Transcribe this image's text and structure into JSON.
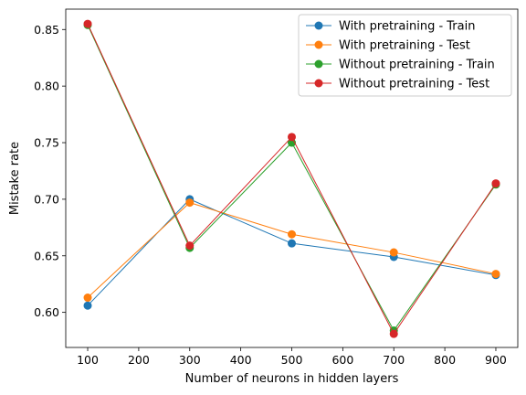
{
  "chart_data": {
    "type": "line",
    "title": "",
    "xlabel": "Number of neurons in hidden layers",
    "ylabel": "Mistake rate",
    "x": [
      100,
      300,
      500,
      700,
      900
    ],
    "xlim": [
      57,
      943
    ],
    "ylim": [
      0.569,
      0.868
    ],
    "xticks": [
      100,
      200,
      300,
      400,
      500,
      600,
      700,
      800,
      900
    ],
    "yticks": [
      0.6,
      0.65,
      0.7,
      0.75,
      0.8,
      0.85
    ],
    "ytick_labels": [
      "0.60",
      "0.65",
      "0.70",
      "0.75",
      "0.80",
      "0.85"
    ],
    "grid": false,
    "legend_position": "top-right",
    "series": [
      {
        "name": "With pretraining - Train",
        "color": "#1f77b4",
        "values": [
          0.606,
          0.7,
          0.661,
          0.649,
          0.633
        ]
      },
      {
        "name": "With pretraining - Test",
        "color": "#ff7f0e",
        "values": [
          0.613,
          0.697,
          0.669,
          0.653,
          0.634
        ]
      },
      {
        "name": "Without pretraining - Train",
        "color": "#2ca02c",
        "values": [
          0.854,
          0.657,
          0.75,
          0.584,
          0.713
        ]
      },
      {
        "name": "Without pretraining - Test",
        "color": "#d62728",
        "values": [
          0.855,
          0.659,
          0.755,
          0.581,
          0.714
        ]
      }
    ]
  }
}
